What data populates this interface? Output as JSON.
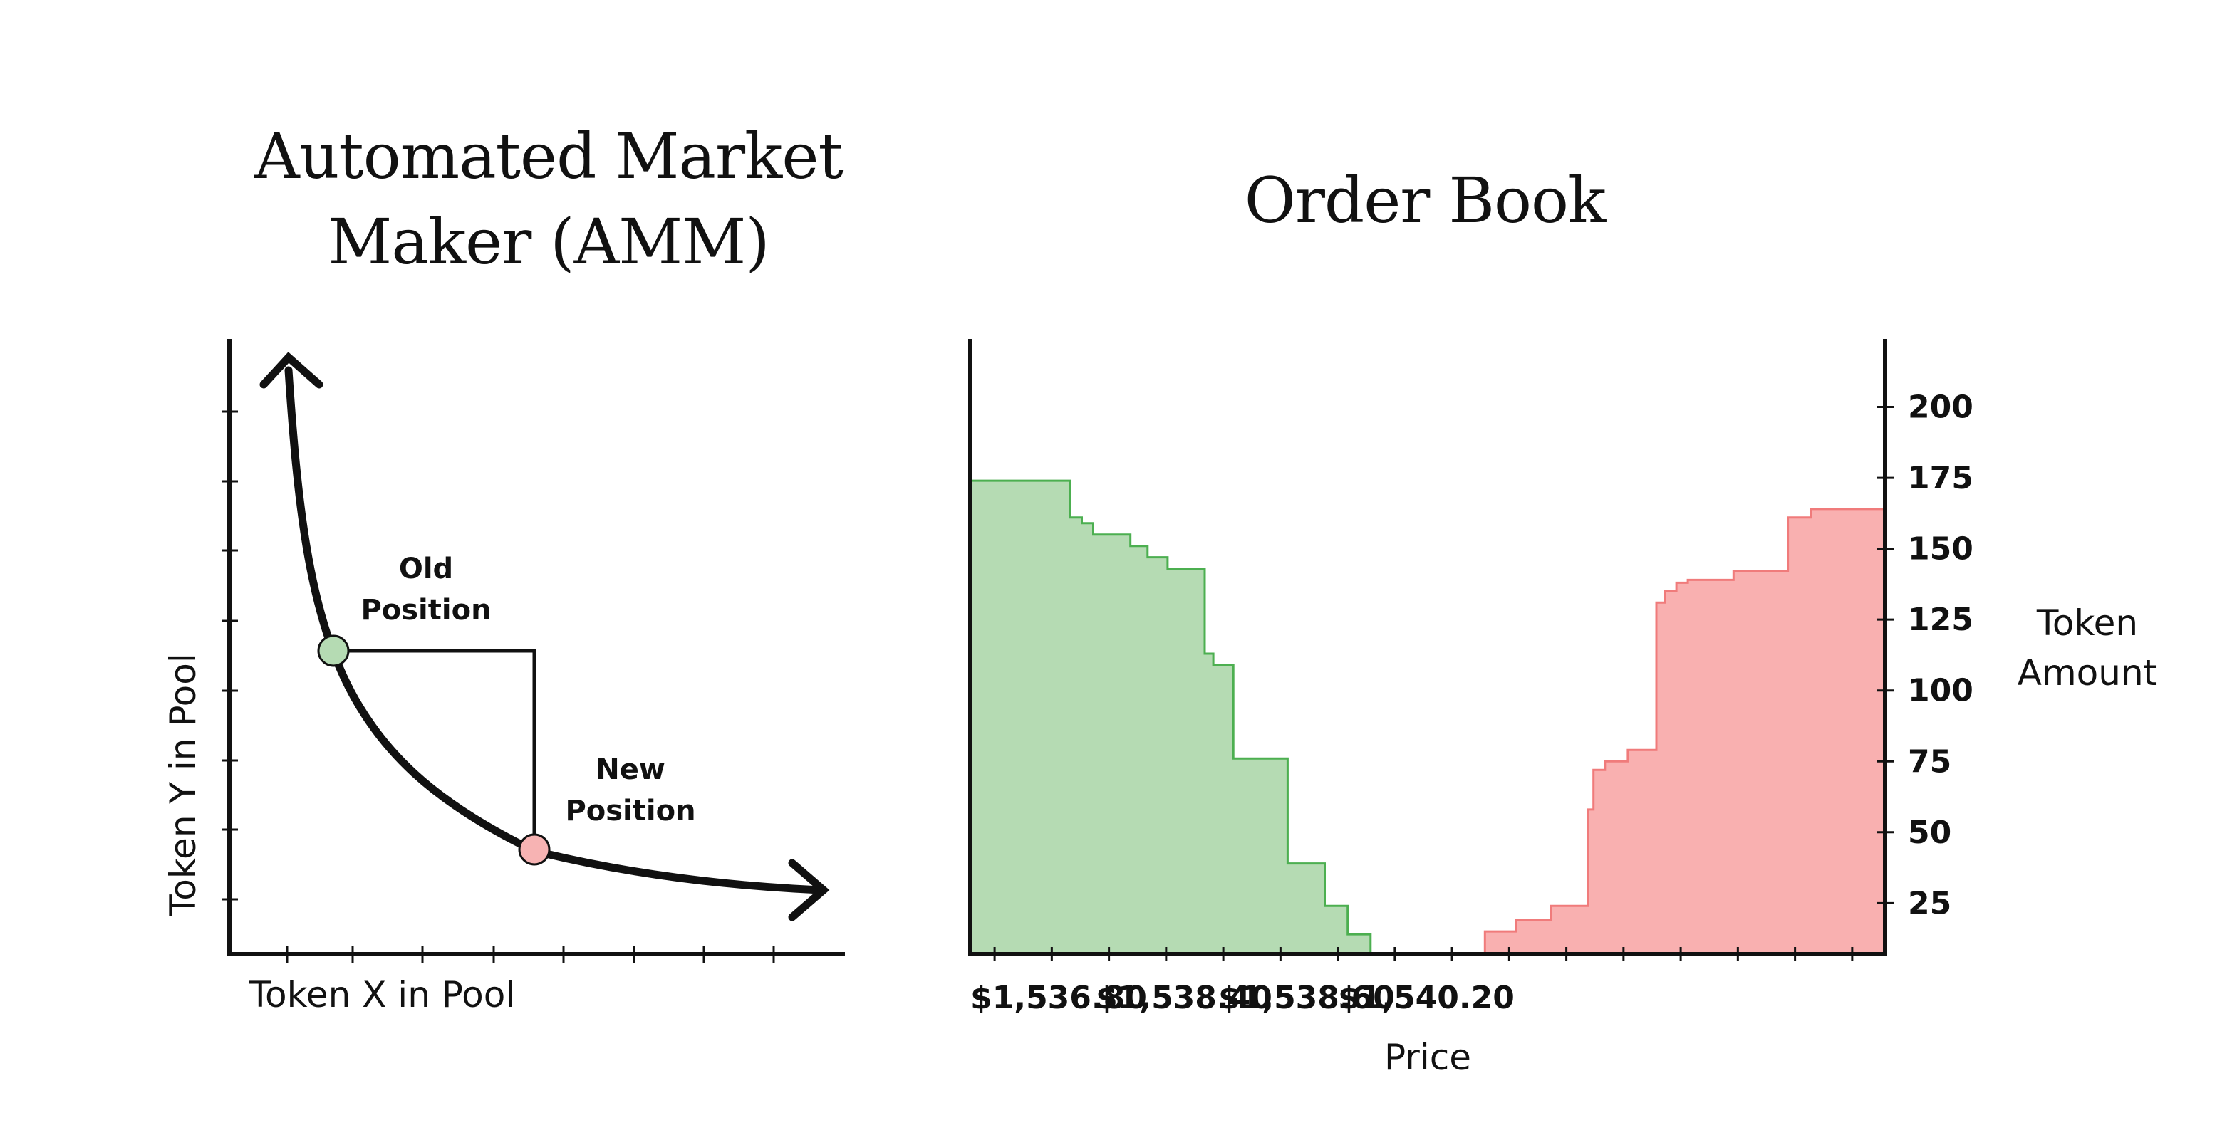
{
  "chart_data": [
    {
      "type": "line",
      "title": "Automated Market Maker (AMM)",
      "title_lines": [
        "Automated Market",
        "Maker (AMM)"
      ],
      "xlabel": "Token X in Pool",
      "ylabel": "Token Y in Pool",
      "grid": false,
      "curve": "constant-product (x * y = k) with arrowheads at both ends",
      "points": [
        {
          "name": "old-position",
          "label_lines": [
            "Old",
            "Position"
          ],
          "color": "#b5dbb3",
          "x": 1.5,
          "y": 3.6
        },
        {
          "name": "new-position",
          "label_lines": [
            "New",
            "Position"
          ],
          "color": "#f7b3b3",
          "x": 4.4,
          "y": 1.2
        }
      ]
    },
    {
      "type": "area",
      "title": "Order Book",
      "xlabel": "Price",
      "ylabel_lines": [
        "Token",
        "Amount"
      ],
      "x_tick_labels": [
        "$1,536.80",
        "$1,538.40",
        "$1,538.60",
        "$1,540.20"
      ],
      "y_ticks": [
        25,
        50,
        75,
        100,
        125,
        150,
        175,
        200
      ],
      "ylim": [
        7,
        224
      ],
      "y_axis_side": "right",
      "grid": false,
      "series": [
        {
          "side": "bid",
          "fill": "#b5dbb3",
          "stroke": "#4caf50",
          "steps": [
            [
              0,
              174
            ],
            [
              70,
              174
            ],
            [
              70,
              161
            ],
            [
              78,
              161
            ],
            [
              78,
              159
            ],
            [
              86,
              159
            ],
            [
              86,
              155
            ],
            [
              92,
              155
            ],
            [
              92,
              155
            ],
            [
              112,
              155
            ],
            [
              112,
              151
            ],
            [
              124,
              151
            ],
            [
              124,
              147
            ],
            [
              138,
              147
            ],
            [
              138,
              143
            ],
            [
              164,
              143
            ],
            [
              164,
              113
            ],
            [
              170,
              113
            ],
            [
              170,
              109
            ],
            [
              184,
              109
            ],
            [
              184,
              76
            ],
            [
              222,
              76
            ],
            [
              222,
              39
            ],
            [
              248,
              39
            ],
            [
              248,
              24
            ],
            [
              264,
              24
            ],
            [
              264,
              14
            ],
            [
              280,
              14
            ],
            [
              280,
              7
            ]
          ]
        },
        {
          "side": "ask",
          "fill": "#f9b0b0",
          "stroke": "#f07b7b",
          "steps": [
            [
              360,
              7
            ],
            [
              360,
              15
            ],
            [
              382,
              15
            ],
            [
              382,
              19
            ],
            [
              406,
              19
            ],
            [
              406,
              24
            ],
            [
              432,
              24
            ],
            [
              432,
              58
            ],
            [
              436,
              58
            ],
            [
              436,
              72
            ],
            [
              444,
              72
            ],
            [
              444,
              75
            ],
            [
              460,
              75
            ],
            [
              460,
              79
            ],
            [
              480,
              79
            ],
            [
              480,
              131
            ],
            [
              486,
              131
            ],
            [
              486,
              135
            ],
            [
              494,
              135
            ],
            [
              494,
              138
            ],
            [
              502,
              138
            ],
            [
              502,
              139
            ],
            [
              534,
              139
            ],
            [
              534,
              142
            ],
            [
              572,
              142
            ],
            [
              572,
              161
            ],
            [
              588,
              161
            ],
            [
              588,
              164
            ],
            [
              640,
              164
            ],
            [
              640,
              7
            ]
          ]
        }
      ]
    }
  ]
}
